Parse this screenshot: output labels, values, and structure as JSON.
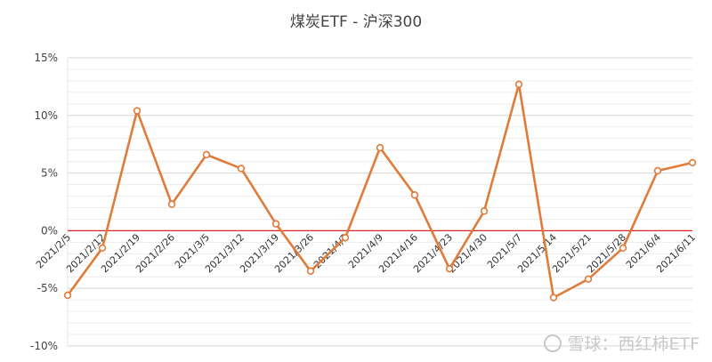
{
  "chart_data": {
    "type": "line",
    "title": "煤炭ETF - 沪深300",
    "categories": [
      "2021/2/5",
      "2021/2/12",
      "2021/2/19",
      "2021/2/26",
      "2021/3/5",
      "2021/3/12",
      "2021/3/19",
      "2021/3/26",
      "2021/4/2",
      "2021/4/9",
      "2021/4/16",
      "2021/4/23",
      "2021/4/30",
      "2021/5/7",
      "2021/5/14",
      "2021/5/21",
      "2021/5/28",
      "2021/6/4",
      "2021/6/11"
    ],
    "series": [
      {
        "values": [
          -5.6,
          -1.5,
          10.4,
          2.3,
          6.6,
          5.4,
          0.6,
          -3.5,
          -0.6,
          7.2,
          3.1,
          -3.3,
          1.7,
          12.7,
          -5.8,
          -4.2,
          -1.5,
          5.2,
          5.9
        ]
      }
    ],
    "ylim": [
      -10,
      15
    ],
    "yticks": [
      -10,
      -5,
      0,
      5,
      10,
      15
    ],
    "ytick_labels": [
      "-10%",
      "-5%",
      "0%",
      "5%",
      "10%",
      "15%"
    ],
    "grid": true,
    "line_color": "#e07b39",
    "zero_line_color": "#d9262c"
  },
  "watermark": {
    "text": "雪球：西红柿ETF"
  }
}
